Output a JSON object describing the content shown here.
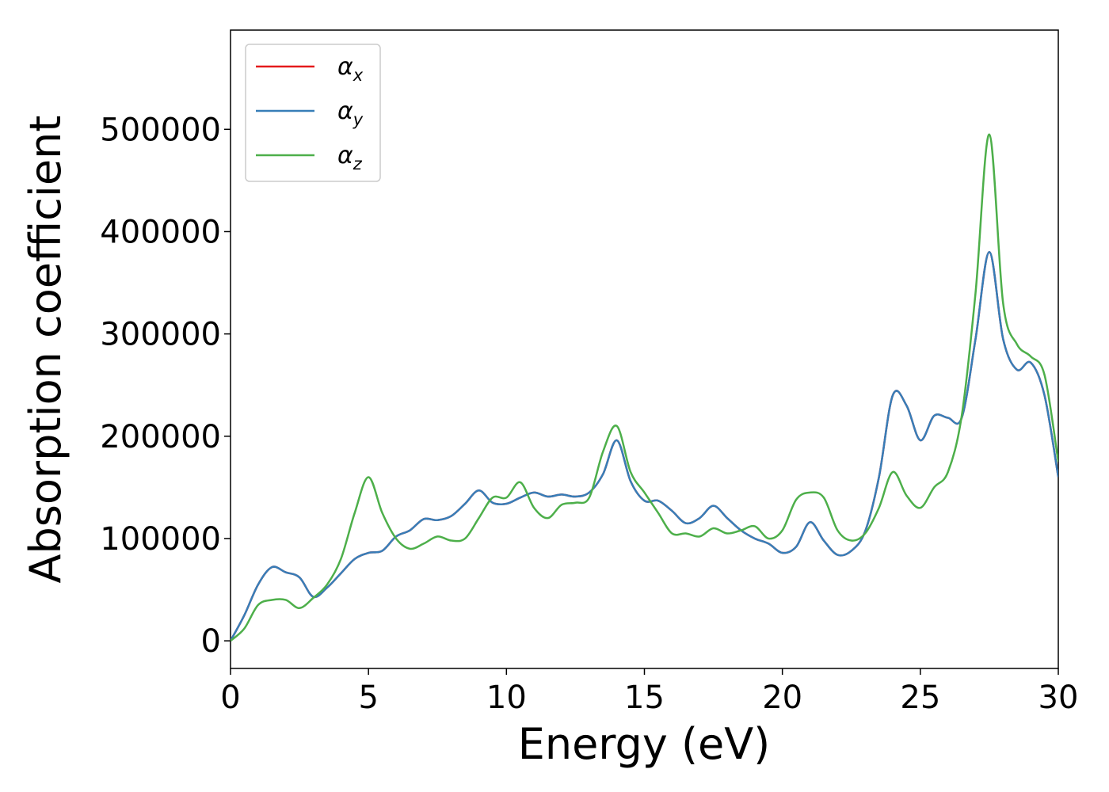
{
  "chart_data": {
    "type": "line",
    "xlabel": "Energy (eV)",
    "ylabel": "Absorption coefficient",
    "xlim": [
      0,
      30
    ],
    "ylim": [
      -27000,
      597000
    ],
    "xticks": [
      "0",
      "5",
      "10",
      "15",
      "20",
      "25",
      "30"
    ],
    "yticks": [
      "0",
      "100000",
      "200000",
      "300000",
      "400000",
      "500000"
    ],
    "grid": false,
    "legend_position": "upper-left",
    "series": [
      {
        "name": "α",
        "sub": "x",
        "color": "#e41a1c",
        "x": [
          0,
          0.5,
          1,
          1.5,
          2,
          2.5,
          3,
          3.5,
          4,
          4.5,
          5,
          5.5,
          6,
          6.5,
          7,
          7.5,
          8,
          8.5,
          9,
          9.5,
          10,
          10.5,
          11,
          11.5,
          12,
          12.5,
          13,
          13.5,
          14,
          14.5,
          15,
          15.5,
          16,
          16.5,
          17,
          17.5,
          18,
          18.5,
          19,
          19.5,
          20,
          20.5,
          21,
          21.5,
          22,
          22.5,
          23,
          23.5,
          24,
          24.5,
          25,
          25.5,
          26,
          26.5,
          27,
          27.5,
          28,
          28.5,
          29,
          29.5,
          30
        ],
        "y": [
          0,
          25000,
          55000,
          72000,
          67000,
          62000,
          43000,
          52000,
          66000,
          80000,
          86000,
          88000,
          102000,
          108000,
          119000,
          118000,
          122000,
          134000,
          147000,
          135000,
          134000,
          140000,
          145000,
          141000,
          143000,
          141000,
          145000,
          163000,
          196000,
          156000,
          137000,
          137000,
          127000,
          115000,
          120000,
          132000,
          120000,
          108000,
          100000,
          95000,
          86000,
          92000,
          116000,
          98000,
          84000,
          88000,
          107000,
          160000,
          240000,
          230000,
          196000,
          220000,
          218000,
          218000,
          295000,
          380000,
          295000,
          265000,
          272000,
          240000,
          160000
        ]
      },
      {
        "name": "α",
        "sub": "y",
        "color": "#377eb8",
        "x": [
          0,
          0.5,
          1,
          1.5,
          2,
          2.5,
          3,
          3.5,
          4,
          4.5,
          5,
          5.5,
          6,
          6.5,
          7,
          7.5,
          8,
          8.5,
          9,
          9.5,
          10,
          10.5,
          11,
          11.5,
          12,
          12.5,
          13,
          13.5,
          14,
          14.5,
          15,
          15.5,
          16,
          16.5,
          17,
          17.5,
          18,
          18.5,
          19,
          19.5,
          20,
          20.5,
          21,
          21.5,
          22,
          22.5,
          23,
          23.5,
          24,
          24.5,
          25,
          25.5,
          26,
          26.5,
          27,
          27.5,
          28,
          28.5,
          29,
          29.5,
          30
        ],
        "y": [
          0,
          25000,
          55000,
          72000,
          67000,
          62000,
          43000,
          52000,
          66000,
          80000,
          86000,
          88000,
          102000,
          108000,
          119000,
          118000,
          122000,
          134000,
          147000,
          135000,
          134000,
          140000,
          145000,
          141000,
          143000,
          141000,
          145000,
          163000,
          196000,
          156000,
          137000,
          137000,
          127000,
          115000,
          120000,
          132000,
          120000,
          108000,
          100000,
          95000,
          86000,
          92000,
          116000,
          98000,
          84000,
          88000,
          107000,
          160000,
          240000,
          230000,
          196000,
          220000,
          218000,
          218000,
          295000,
          380000,
          295000,
          265000,
          272000,
          240000,
          160000
        ]
      },
      {
        "name": "α",
        "sub": "z",
        "color": "#4daf4a",
        "x": [
          0,
          0.5,
          1,
          1.5,
          2,
          2.5,
          3,
          3.5,
          4,
          4.5,
          5,
          5.5,
          6,
          6.5,
          7,
          7.5,
          8,
          8.5,
          9,
          9.5,
          10,
          10.5,
          11,
          11.5,
          12,
          12.5,
          13,
          13.5,
          14,
          14.5,
          15,
          15.5,
          16,
          16.5,
          17,
          17.5,
          18,
          18.5,
          19,
          19.5,
          20,
          20.5,
          21,
          21.5,
          22,
          22.5,
          23,
          23.5,
          24,
          24.5,
          25,
          25.5,
          26,
          26.5,
          27,
          27.5,
          28,
          28.5,
          29,
          29.5,
          30
        ],
        "y": [
          0,
          12000,
          35000,
          40000,
          40000,
          32000,
          42000,
          55000,
          80000,
          125000,
          160000,
          125000,
          100000,
          90000,
          95000,
          102000,
          98000,
          100000,
          120000,
          140000,
          140000,
          155000,
          130000,
          120000,
          133000,
          135000,
          140000,
          185000,
          210000,
          165000,
          145000,
          125000,
          105000,
          105000,
          102000,
          110000,
          105000,
          108000,
          112000,
          100000,
          108000,
          138000,
          145000,
          140000,
          108000,
          98000,
          105000,
          130000,
          165000,
          142000,
          130000,
          150000,
          165000,
          220000,
          340000,
          495000,
          330000,
          290000,
          278000,
          260000,
          175000
        ]
      }
    ]
  }
}
